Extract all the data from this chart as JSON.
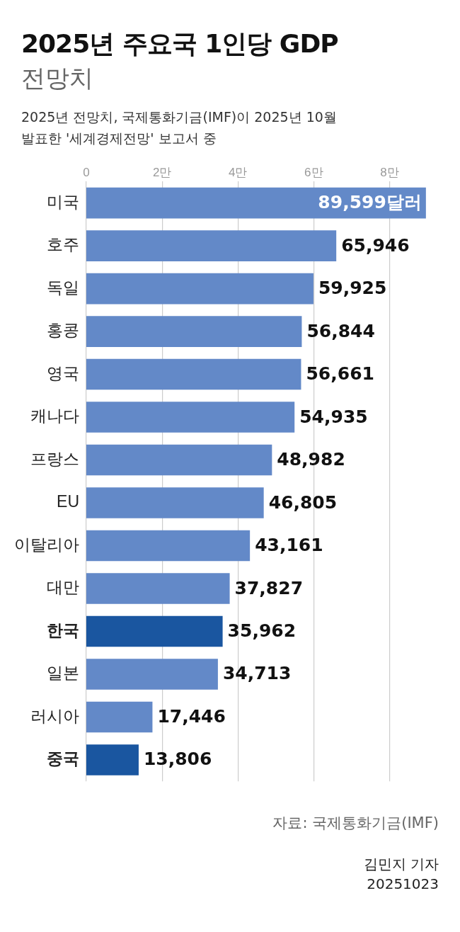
{
  "chart_data": {
    "type": "bar",
    "orientation": "horizontal",
    "title": "2025년 주요국 1인당 GDP",
    "subtitle": "전망치",
    "categories": [
      "미국",
      "호주",
      "독일",
      "홍콩",
      "영국",
      "캐나다",
      "프랑스",
      "EU",
      "이탈리아",
      "대만",
      "한국",
      "일본",
      "러시아",
      "중국"
    ],
    "values": [
      89599,
      65946,
      59925,
      56844,
      56661,
      54935,
      48982,
      46805,
      43161,
      37827,
      35962,
      34713,
      17446,
      13806
    ],
    "value_labels": [
      "89,599달러",
      "65,946",
      "59,925",
      "56,844",
      "56,661",
      "54,935",
      "48,982",
      "46,805",
      "43,161",
      "37,827",
      "35,962",
      "34,713",
      "17,446",
      "13,806"
    ],
    "colors": [
      "#6389c8",
      "#6389c8",
      "#6389c8",
      "#6389c8",
      "#6389c8",
      "#6389c8",
      "#6389c8",
      "#6389c8",
      "#6389c8",
      "#6389c8",
      "#1a56a0",
      "#6389c8",
      "#6389c8",
      "#1a56a0"
    ],
    "xlim": [
      0,
      90000
    ],
    "x2lim": [
      0,
      9
    ],
    "x2ticks": [
      0,
      {
        "value": 2,
        "label": "2만"
      },
      {
        "value": 4,
        "label": "4만"
      },
      {
        "value": 6,
        "label": "6만"
      },
      {
        "value": 8,
        "label": "8만"
      }
    ],
    "grid": "x",
    "legend": false,
    "annotations": [
      "2025년 전망치, 국제통화기금(IMF)이 2025년 10월 발표한 '세계경제전망' 보고서 중",
      "자료: 국제통화기금(IMF)",
      "김민지 기자",
      "20251023"
    ]
  }
}
